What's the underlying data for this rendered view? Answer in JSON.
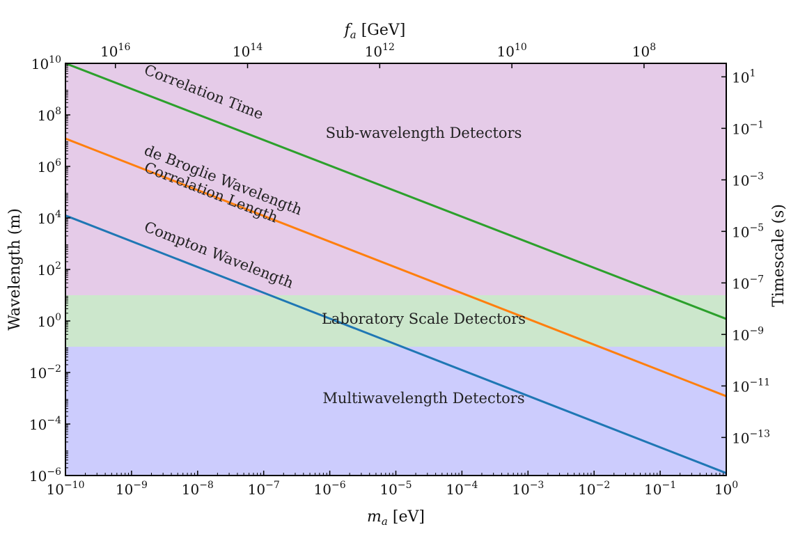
{
  "chart_data": {
    "type": "line",
    "x_scale": "log",
    "y_scale": "log",
    "xlim": [
      1e-10,
      1
    ],
    "ylim": [
      1e-06,
      10000000000.0
    ],
    "xlabel": "m_a [eV]",
    "ylabel": "Wavelength (m)",
    "top_axis": {
      "label": "f_a [GeV]",
      "ticks": [
        {
          "label": "10^16",
          "at_ma": 5.7e-10
        },
        {
          "label": "10^14",
          "at_ma": 5.7e-08
        },
        {
          "label": "10^12",
          "at_ma": 5.7e-06
        },
        {
          "label": "10^10",
          "at_ma": 0.00057
        },
        {
          "label": "10^8",
          "at_ma": 0.057
        }
      ]
    },
    "right_axis": {
      "label": "Timescale (s)",
      "ticks": [
        {
          "label": "10^1",
          "at_wavelength": 3000000000.0
        },
        {
          "label": "10^-1",
          "at_wavelength": 30000000.0
        },
        {
          "label": "10^-3",
          "at_wavelength": 300000.0
        },
        {
          "label": "10^-5",
          "at_wavelength": 3000.0
        },
        {
          "label": "10^-7",
          "at_wavelength": 30
        },
        {
          "label": "10^-9",
          "at_wavelength": 0.3
        },
        {
          "label": "10^-11",
          "at_wavelength": 0.003
        },
        {
          "label": "10^-13",
          "at_wavelength": 3e-05
        }
      ]
    },
    "x_ticks": [
      "10^-10",
      "10^-9",
      "10^-8",
      "10^-7",
      "10^-6",
      "10^-5",
      "10^-4",
      "10^-3",
      "10^-2",
      "10^-1",
      "10^0"
    ],
    "y_ticks": [
      "10^-6",
      "10^-4",
      "10^-2",
      "10^0",
      "10^2",
      "10^4",
      "10^6",
      "10^8",
      "10^10"
    ],
    "regions": [
      {
        "label": "Sub-wavelength Detectors",
        "y_range": [
          10,
          10000000000.0
        ],
        "color": "#e5cbe8"
      },
      {
        "label": "Laboratory Scale Detectors",
        "y_range": [
          0.1,
          10
        ],
        "color": "#cce7cc"
      },
      {
        "label": "Multiwavelength Detectors",
        "y_range": [
          1e-06,
          0.1
        ],
        "color": "#ccccfd"
      }
    ],
    "series": [
      {
        "name": "Correlation Time",
        "color": "#2ca02c",
        "x": [
          1e-10,
          1
        ],
        "y": [
          10000000000.0,
          1.2
        ]
      },
      {
        "name": "de Broglie Wavelength / Correlation Length",
        "color": "#ff7f0e",
        "x": [
          1e-10,
          1
        ],
        "y": [
          12000000.0,
          0.0012
        ]
      },
      {
        "name": "Compton Wavelength",
        "color": "#1f77b4",
        "x": [
          1e-10,
          1
        ],
        "y": [
          12400.0,
          1.24e-06
        ]
      }
    ],
    "line_labels": [
      {
        "text": "Correlation Time",
        "color": "#2ca02c",
        "x": 1.5e-09,
        "y": 4000000000.0
      },
      {
        "text": "de Broglie Wavelength",
        "color": "#ff7f0e",
        "x": 1.5e-09,
        "y": 3000000.0
      },
      {
        "text": "Correlation Length",
        "color": "#ff7f0e",
        "x": 1.5e-09,
        "y": 650000.0
      },
      {
        "text": "Compton Wavelength",
        "color": "#1f77b4",
        "x": 1.5e-09,
        "y": 3200.0
      }
    ]
  }
}
